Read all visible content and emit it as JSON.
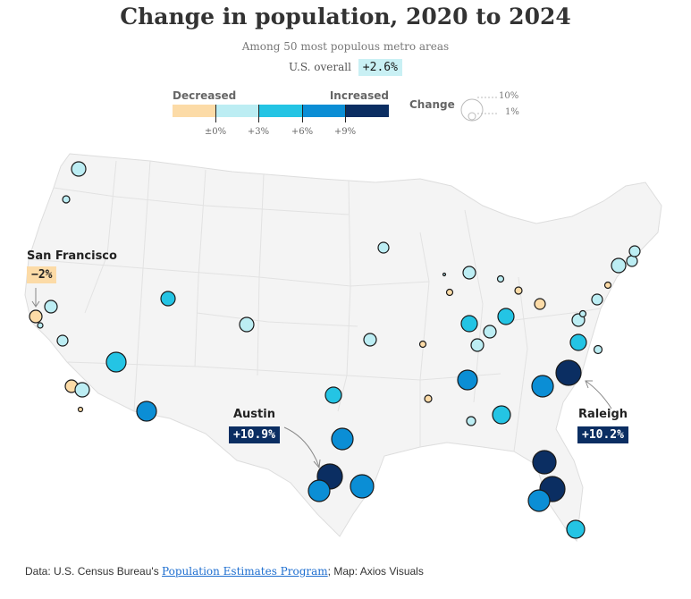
{
  "title": "Change in population, 2020 to 2024",
  "subtitle": "Among 50 most populous metro areas",
  "overall": {
    "label": "U.S. overall",
    "value": "+2.6%"
  },
  "legend": {
    "decreased": "Decreased",
    "increased": "Increased",
    "colors": [
      "#fcdba7",
      "#bcedf3",
      "#24c4e4",
      "#0b8ed5",
      "#0b2e62"
    ],
    "ticks": [
      "±0%",
      "+3%",
      "+6%",
      "+9%"
    ],
    "size_title": "Change",
    "size_labels": [
      "10%",
      "1%"
    ]
  },
  "callouts": {
    "san_francisco": {
      "name": "San Francisco",
      "value": "−2%"
    },
    "austin": {
      "name": "Austin",
      "value": "+10.9%"
    },
    "raleigh": {
      "name": "Raleigh",
      "value": "+10.2%"
    }
  },
  "source": {
    "prefix": "Data: U.S. Census Bureau's ",
    "link": "Population Estimates Program",
    "suffix": "; Map: Axios Visuals"
  }
}
